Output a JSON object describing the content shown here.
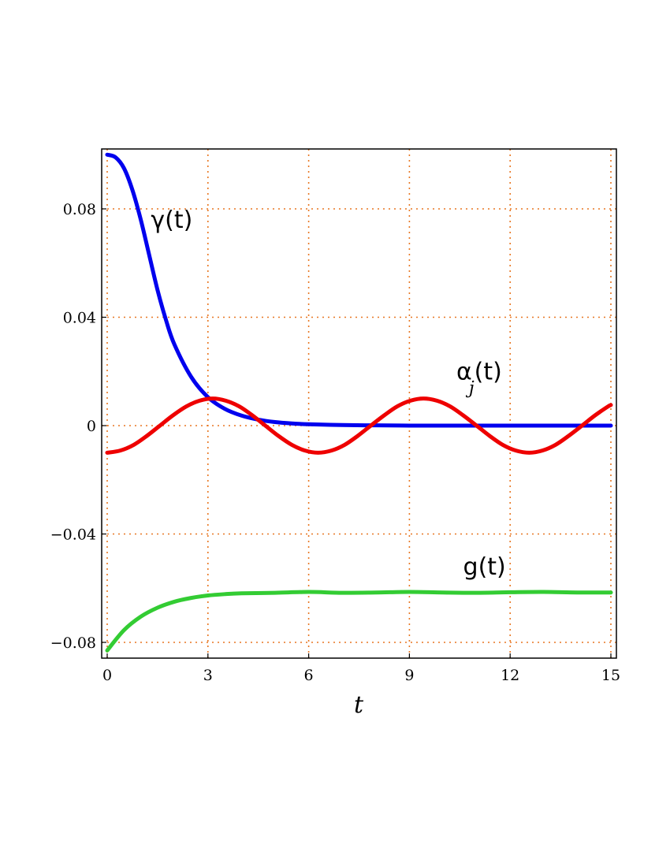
{
  "chart_data": {
    "type": "line",
    "title": "",
    "xlabel": "t",
    "ylabel": "",
    "xlim": [
      0,
      15
    ],
    "ylim": [
      -0.085,
      0.1
    ],
    "grid": true,
    "grid_style": "dotted",
    "grid_color": "#e87722",
    "x_ticks": [
      {
        "value": 0,
        "label": "0"
      },
      {
        "value": 3,
        "label": "3"
      },
      {
        "value": 6,
        "label": "6"
      },
      {
        "value": 9,
        "label": "9"
      },
      {
        "value": 12,
        "label": "12"
      },
      {
        "value": 15,
        "label": "15"
      }
    ],
    "y_ticks": [
      {
        "value": 0.08,
        "label": "0.08"
      },
      {
        "value": 0.04,
        "label": "0.04"
      },
      {
        "value": 0,
        "label": "0"
      },
      {
        "value": -0.04,
        "label": "−0.04"
      },
      {
        "value": -0.08,
        "label": "−0.08"
      }
    ],
    "series": [
      {
        "name": "γ(t)",
        "color": "#0000ee",
        "x": [
          0,
          0.25,
          0.5,
          0.75,
          1,
          1.25,
          1.5,
          1.75,
          2,
          2.5,
          3,
          3.5,
          4,
          4.5,
          5,
          5.5,
          6,
          7,
          8,
          9,
          10,
          11,
          12,
          13,
          14,
          15
        ],
        "y": [
          0.1,
          0.099,
          0.095,
          0.087,
          0.076,
          0.063,
          0.05,
          0.039,
          0.03,
          0.018,
          0.0105,
          0.0062,
          0.0037,
          0.0022,
          0.0013,
          0.0008,
          0.0005,
          0.0002,
          0.0001,
          0,
          0,
          0,
          0,
          0,
          0,
          0
        ]
      },
      {
        "name": "α_j(t)",
        "color": "#ee0000",
        "x": [
          0,
          0.39,
          0.79,
          1.18,
          1.57,
          1.96,
          2.36,
          2.75,
          3.14,
          3.53,
          3.93,
          4.32,
          4.71,
          5.1,
          5.5,
          5.89,
          6.28,
          6.68,
          7.07,
          7.46,
          7.85,
          8.25,
          8.64,
          9.03,
          9.42,
          9.82,
          10.21,
          10.6,
          11.0,
          11.39,
          11.78,
          12.17,
          12.57,
          12.96,
          13.35,
          13.74,
          14.14,
          14.53,
          14.92,
          15
        ],
        "y": [
          -0.01,
          -0.0092,
          -0.0071,
          -0.0038,
          0.0,
          0.0038,
          0.0071,
          0.0092,
          0.01,
          0.0092,
          0.0071,
          0.0038,
          0.0,
          -0.0038,
          -0.0071,
          -0.0092,
          -0.01,
          -0.0092,
          -0.0071,
          -0.0038,
          0.0,
          0.0038,
          0.0071,
          0.0092,
          0.01,
          0.0092,
          0.0071,
          0.0038,
          0.0,
          -0.0038,
          -0.0071,
          -0.0092,
          -0.01,
          -0.0092,
          -0.0071,
          -0.0038,
          0.0,
          0.0038,
          0.0071,
          0.0076
        ]
      },
      {
        "name": "g(t)",
        "color": "#33cc33",
        "x": [
          0,
          0.5,
          1,
          1.5,
          2,
          2.5,
          3,
          3.5,
          4,
          5,
          6,
          7,
          8,
          9,
          10,
          11,
          12,
          13,
          14,
          15
        ],
        "y": [
          -0.083,
          -0.0755,
          -0.0705,
          -0.0672,
          -0.065,
          -0.0636,
          -0.0627,
          -0.0622,
          -0.0619,
          -0.0617,
          -0.0614,
          -0.0617,
          -0.0616,
          -0.0614,
          -0.0616,
          -0.0617,
          -0.0615,
          -0.0614,
          -0.0616,
          -0.0616
        ]
      }
    ],
    "annotations": [
      {
        "series": 0,
        "text": "γ(t)",
        "x": 1.3,
        "y": 0.073
      },
      {
        "series": 1,
        "text": "α",
        "sub": "j",
        "after": "(t)",
        "x": 10.4,
        "y": 0.017
      },
      {
        "series": 2,
        "text": "g(t)",
        "x": 10.6,
        "y": -0.055
      }
    ]
  }
}
